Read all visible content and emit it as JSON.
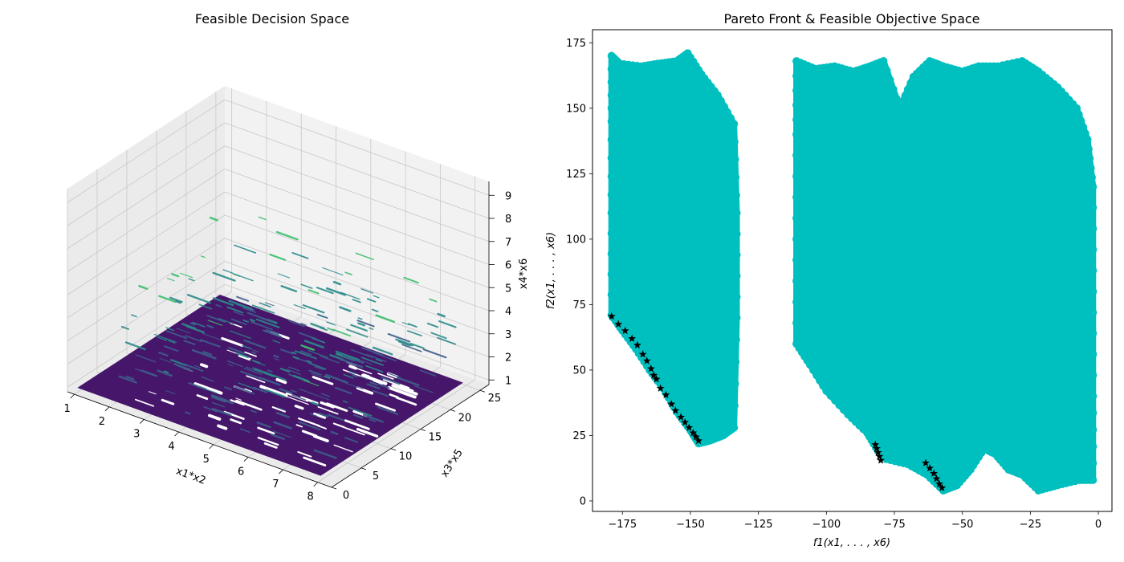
{
  "colors": {
    "background": "#ffffff",
    "pane_light": "#f2f2f2",
    "pane_mid": "#ebebeb",
    "grid": "#c8c8c8",
    "surface_base": "#46166a",
    "surface_low": "#3e5f8c",
    "surface_mid": "#2c8a8a",
    "surface_high": "#3fbf6f",
    "feasible": "#00bfbf",
    "pareto": "#000000"
  },
  "chart_data": [
    {
      "type": "surface3d",
      "title": "Feasible Decision Space",
      "xlabel": "x1*x2",
      "ylabel": "x3*x5",
      "zlabel": "x4*x6",
      "xlim": [
        0.8,
        8.4
      ],
      "ylim": [
        0,
        26.5
      ],
      "zlim": [
        0.8,
        9.6
      ],
      "xticks": [
        1,
        2,
        3,
        4,
        5,
        6,
        7,
        8
      ],
      "yticks": [
        0,
        5,
        10,
        15,
        20,
        25
      ],
      "zticks": [
        1,
        2,
        3,
        4,
        5,
        6,
        7,
        8,
        9
      ],
      "base_level": 1,
      "grid": true,
      "colormap": "viridis"
    },
    {
      "type": "scatter",
      "title": "Pareto Front & Feasible Objective Space",
      "xlabel": "f1(x1, . . . , x6)",
      "ylabel": "f2(x1, . . . , x6)",
      "xlim": [
        -186,
        5
      ],
      "ylim": [
        -4,
        180
      ],
      "xticks": [
        -175,
        -150,
        -125,
        -100,
        -75,
        -50,
        -25,
        0
      ],
      "yticks": [
        0,
        25,
        50,
        75,
        100,
        125,
        150,
        175
      ],
      "grid": false,
      "series": [
        {
          "marker": "circle",
          "color": "#00bfbf",
          "regions": [
            {
              "outline": [
                [
                  -179,
                  170
                ],
                [
                  -176,
                  167
                ],
                [
                  -168,
                  166
                ],
                [
                  -162,
                  167
                ],
                [
                  -155,
                  168
                ],
                [
                  -151,
                  171
                ],
                [
                  -146,
                  163
                ],
                [
                  -140,
                  155
                ],
                [
                  -134,
                  144
                ],
                [
                  -133,
                  110
                ],
                [
                  -133,
                  70
                ],
                [
                  -134,
                  28
                ],
                [
                  -138,
                  25
                ],
                [
                  -143,
                  23
                ],
                [
                  -147,
                  22
                ],
                [
                  -150,
                  27
                ],
                [
                  -155,
                  34
                ],
                [
                  -160,
                  43
                ],
                [
                  -165,
                  50
                ],
                [
                  -170,
                  58
                ],
                [
                  -175,
                  65
                ],
                [
                  -179,
                  71
                ],
                [
                  -179,
                  110
                ],
                [
                  -179,
                  145
                ]
              ]
            },
            {
              "outline": [
                [
                  -111,
                  168
                ],
                [
                  -104,
                  165
                ],
                [
                  -97,
                  166
                ],
                [
                  -90,
                  164
                ],
                [
                  -84,
                  166
                ],
                [
                  -79,
                  168
                ],
                [
                  -73,
                  150
                ],
                [
                  -68,
                  162
                ],
                [
                  -62,
                  168
                ],
                [
                  -57,
                  166
                ],
                [
                  -50,
                  164
                ],
                [
                  -44,
                  166
                ],
                [
                  -37,
                  166
                ],
                [
                  -28,
                  168
                ],
                [
                  -22,
                  164
                ],
                [
                  -15,
                  158
                ],
                [
                  -8,
                  150
                ],
                [
                  -4,
                  138
                ],
                [
                  -2,
                  120
                ],
                [
                  -2,
                  80
                ],
                [
                  -2,
                  40
                ],
                [
                  -2,
                  8
                ],
                [
                  -7,
                  8
                ],
                [
                  -15,
                  6
                ],
                [
                  -22,
                  4
                ],
                [
                  -28,
                  10
                ],
                [
                  -33,
                  12
                ],
                [
                  -38,
                  18
                ],
                [
                  -42,
                  20
                ],
                [
                  -47,
                  12
                ],
                [
                  -52,
                  6
                ],
                [
                  -57,
                  4
                ],
                [
                  -63,
                  10
                ],
                [
                  -70,
                  14
                ],
                [
                  -78,
                  16
                ],
                [
                  -81,
                  19
                ],
                [
                  -85,
                  26
                ],
                [
                  -92,
                  33
                ],
                [
                  -100,
                  42
                ],
                [
                  -106,
                  52
                ],
                [
                  -111,
                  60
                ],
                [
                  -111,
                  100
                ],
                [
                  -111,
                  140
                ]
              ]
            }
          ]
        },
        {
          "marker": "star",
          "color": "#000000",
          "points": [
            [
              -179,
              70.5
            ],
            [
              -176.5,
              67.5
            ],
            [
              -174,
              65
            ],
            [
              -171.5,
              62
            ],
            [
              -169.5,
              59.5
            ],
            [
              -167.5,
              56
            ],
            [
              -166,
              53.5
            ],
            [
              -164.5,
              50.5
            ],
            [
              -163.5,
              48
            ],
            [
              -162.5,
              46.5
            ],
            [
              -161,
              43
            ],
            [
              -159,
              40.5
            ],
            [
              -157,
              37
            ],
            [
              -155.5,
              34.5
            ],
            [
              -153.5,
              32
            ],
            [
              -152,
              30
            ],
            [
              -150.5,
              28
            ],
            [
              -149,
              26
            ],
            [
              -148,
              24.5
            ],
            [
              -147,
              23
            ],
            [
              -82,
              21.5
            ],
            [
              -81.5,
              20
            ],
            [
              -81,
              18.5
            ],
            [
              -80.5,
              17
            ],
            [
              -80,
              15.5
            ],
            [
              -63.5,
              14.5
            ],
            [
              -62,
              12.5
            ],
            [
              -60.5,
              10.5
            ],
            [
              -59.5,
              8.5
            ],
            [
              -58.5,
              6.5
            ],
            [
              -57.5,
              5
            ]
          ]
        }
      ]
    }
  ]
}
